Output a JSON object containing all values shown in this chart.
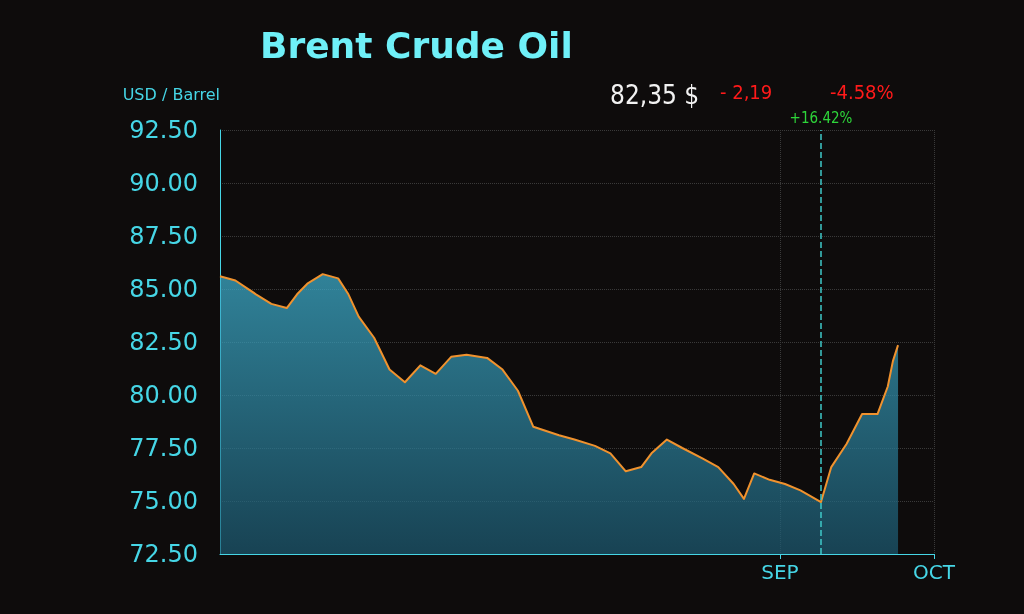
{
  "chart_data": {
    "type": "area",
    "title": "Brent Crude Oil",
    "ylabel": "USD / Barrel",
    "annotations": [
      "82,35 $",
      "- 2,19",
      "-4.58%"
    ],
    "x": [
      "--05-15",
      "--05-18",
      "--05-22",
      "--05-25",
      "--05-28",
      "--05-30",
      "--06-01",
      "--06-04",
      "--06-07",
      "--06-09",
      "--06-11",
      "--06-14",
      "--06-17",
      "--06-20",
      "--06-23",
      "--06-26",
      "--06-29",
      "--07-02",
      "--07-06",
      "--07-09",
      "--07-12",
      "--07-15",
      "--07-20",
      "--07-23",
      "--07-27",
      "--07-30",
      "--08-02",
      "--08-05",
      "--08-07",
      "--08-10",
      "--08-13",
      "--08-17",
      "--08-20",
      "--08-23",
      "--08-25",
      "--08-27",
      "--08-30",
      "--09-02",
      "--09-05",
      "--09-09",
      "--09-11",
      "--09-14",
      "--09-17",
      "--09-20",
      "--09-22",
      "--09-23",
      "--09-24"
    ],
    "series": [
      {
        "color": "#f0922e",
        "values": [
          85.6,
          85.4,
          84.75,
          84.3,
          84.1,
          84.75,
          85.25,
          85.7,
          85.5,
          84.75,
          83.7,
          82.7,
          81.2,
          80.6,
          81.4,
          81.0,
          81.8,
          81.9,
          81.75,
          81.2,
          80.2,
          78.5,
          78.1,
          77.9,
          77.6,
          77.25,
          76.4,
          76.6,
          77.25,
          77.9,
          77.5,
          77.0,
          76.6,
          75.8,
          75.1,
          76.3,
          76.0,
          75.8,
          75.5,
          74.95,
          76.6,
          77.7,
          79.1,
          79.1,
          80.4,
          81.6,
          82.35
        ]
      }
    ],
    "xlim": [
      "--05-15",
      "--10-01"
    ],
    "xticks": [
      {
        "value": "--09-01",
        "label": "SEP"
      },
      {
        "value": "--10-01",
        "label": "OCT"
      }
    ],
    "ylim": [
      72.5,
      92.5
    ],
    "yticks": [
      {
        "value": 72.5,
        "label": "72.50"
      },
      {
        "value": 75,
        "label": "75.00"
      },
      {
        "value": 77.5,
        "label": "77.50"
      },
      {
        "value": 80,
        "label": "80.00"
      },
      {
        "value": 82.5,
        "label": "82.50"
      },
      {
        "value": 85,
        "label": "85.00"
      },
      {
        "value": 87.5,
        "label": "87.50"
      },
      {
        "value": 90,
        "label": "90.00"
      },
      {
        "value": 92.5,
        "label": "92.50"
      }
    ],
    "ref_lines": [
      {
        "axis": "x",
        "value": "--09-09",
        "label": "+16.42%",
        "color": "#3fc9c9",
        "line_style": "dashed"
      }
    ],
    "grid": true,
    "marker": "none",
    "line_style": "solid"
  }
}
